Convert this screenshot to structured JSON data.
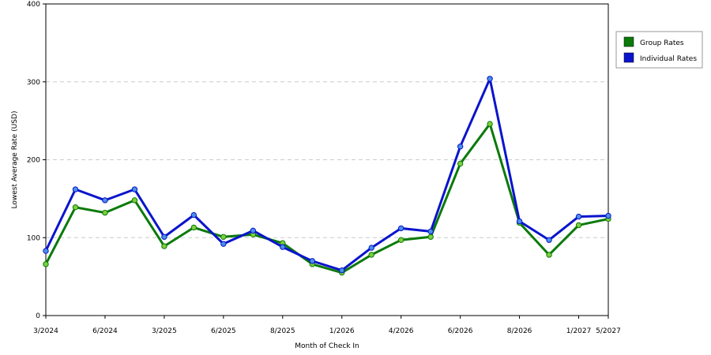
{
  "chart_data": {
    "type": "line",
    "title": "",
    "xlabel": "Month of Check In",
    "ylabel": "Lowest Average Rate (USD)",
    "ylim": [
      0,
      400
    ],
    "yticks": [
      0,
      100,
      200,
      300,
      400
    ],
    "grid": true,
    "legend_position": "top-right",
    "x_tick_labels": [
      "3/2024",
      "6/2024",
      "3/2025",
      "6/2025",
      "8/2025",
      "1/2026",
      "4/2026",
      "6/2026",
      "8/2026",
      "1/2027",
      "5/2027"
    ],
    "x_tick_indices": [
      0,
      2,
      4,
      6,
      8,
      10,
      12,
      14,
      16,
      18,
      19
    ],
    "series": [
      {
        "name": "Group Rates",
        "color": "#0b7a0b",
        "marker_color": "#7ccf3c",
        "values": [
          66,
          139,
          132,
          148,
          89,
          113,
          101,
          104,
          93,
          66,
          55,
          78,
          97,
          101,
          195,
          246,
          119,
          78,
          116,
          124
        ]
      },
      {
        "name": "Individual Rates",
        "color": "#0a14cc",
        "marker_color": "#4a90e8",
        "values": [
          83,
          162,
          148,
          162,
          101,
          129,
          92,
          109,
          88,
          70,
          58,
          87,
          112,
          108,
          217,
          304,
          121,
          97,
          127,
          128
        ]
      }
    ]
  }
}
